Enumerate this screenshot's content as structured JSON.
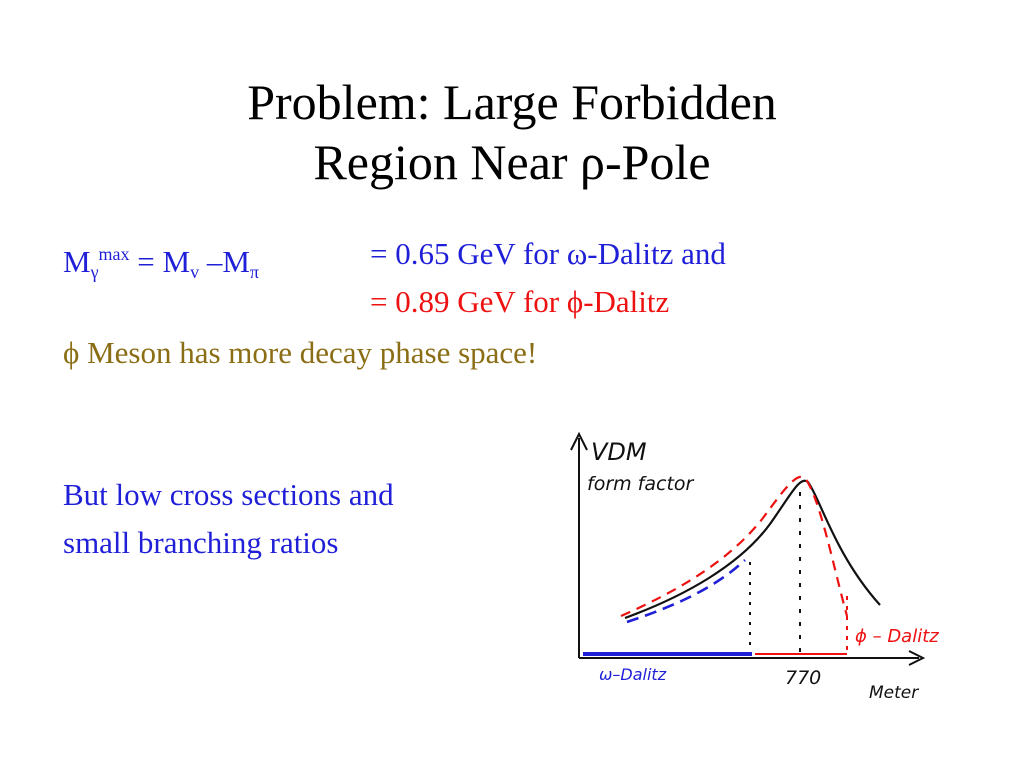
{
  "title": {
    "line1": "Problem: Large Forbidden",
    "line2_pre": "Region Near ",
    "line2_greek": "ρ",
    "line2_post": "-Pole"
  },
  "formula": {
    "M": "M",
    "gamma": "γ",
    "max": "max",
    "eq_mv": " = M",
    "v": "v",
    "minus_m": " –M",
    "pi": "π",
    "omega_pre": "= 0.65 GeV for ",
    "omega_sym": "ω",
    "omega_post": "-Dalitz and",
    "phi_pre": "= 0.89 GeV for ",
    "phi_sym": "ϕ",
    "phi_post": "-Dalitz"
  },
  "phase_space": {
    "sym": "ϕ",
    "text": " Meson has more decay phase space!"
  },
  "note": {
    "line1": "But low cross sections and",
    "line2": "small branching ratios"
  },
  "sketch": {
    "y_label_1": "VDM",
    "y_label_2": "form factor",
    "omega_label": "ω–Dalitz",
    "phi_label": "ϕ – Dalitz",
    "pole_label": "770",
    "x_label": "Meter"
  },
  "colors": {
    "blue": "#1f1fd8",
    "red": "#ee1111",
    "olive": "#8a6d14",
    "ink": "#111111"
  }
}
